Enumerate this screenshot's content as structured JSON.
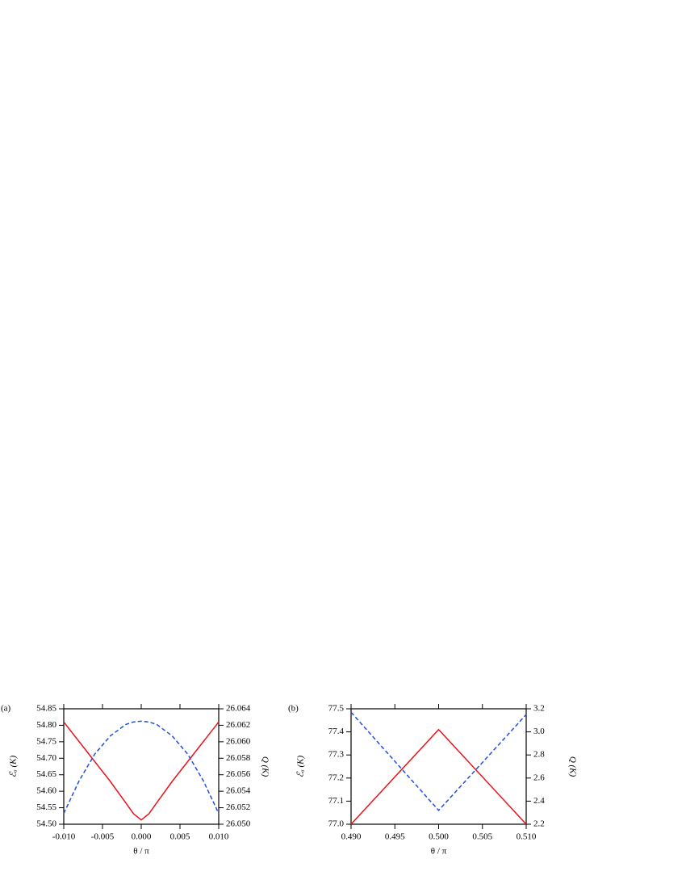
{
  "chart_data": [
    {
      "type": "line",
      "label": "(a)",
      "x_label": "θ / π",
      "y_label": "ℰₐ (K)",
      "y2_label": "Q (K)",
      "x": [
        -0.01,
        -0.008,
        -0.006,
        -0.004,
        -0.002,
        -0.001,
        0.0,
        0.001,
        0.002,
        0.004,
        0.006,
        0.008,
        0.01
      ],
      "xlim": [
        -0.01,
        0.01
      ],
      "xticks": [
        {
          "value": -0.01,
          "label": "-0.010"
        },
        {
          "value": -0.005,
          "label": "-0.005"
        },
        {
          "value": 0,
          "label": "0.000"
        },
        {
          "value": 0.005,
          "label": "0.005"
        },
        {
          "value": 0.01,
          "label": "0.010"
        }
      ],
      "ylim": [
        54.5,
        54.85
      ],
      "yticks": [
        {
          "value": 54.5,
          "label": "54.50"
        },
        {
          "value": 54.55,
          "label": "54.55"
        },
        {
          "value": 54.6,
          "label": "54.60"
        },
        {
          "value": 54.65,
          "label": "54.65"
        },
        {
          "value": 54.7,
          "label": "54.70"
        },
        {
          "value": 54.75,
          "label": "54.75"
        },
        {
          "value": 54.8,
          "label": "54.80"
        },
        {
          "value": 54.85,
          "label": "54.85"
        }
      ],
      "y2lim": [
        26.05,
        26.064
      ],
      "y2ticks": [
        {
          "value": 26.05,
          "label": "26.050"
        },
        {
          "value": 26.052,
          "label": "26.052"
        },
        {
          "value": 26.054,
          "label": "26.054"
        },
        {
          "value": 26.056,
          "label": "26.056"
        },
        {
          "value": 26.058,
          "label": "26.058"
        },
        {
          "value": 26.06,
          "label": "26.060"
        },
        {
          "value": 26.062,
          "label": "26.062"
        },
        {
          "value": 26.064,
          "label": "26.064"
        }
      ],
      "series": [
        {
          "color": "#e8141c",
          "dash": false,
          "values": [
            54.81,
            54.75,
            54.69,
            54.63,
            54.565,
            54.532,
            54.513,
            54.532,
            54.565,
            54.63,
            54.69,
            54.75,
            54.81
          ]
        },
        {
          "color": "#1f4fe0",
          "dash": true,
          "axis": "y2",
          "values": [
            26.0513,
            26.0553,
            26.0585,
            26.0607,
            26.0621,
            26.0624,
            26.0625,
            26.0624,
            26.0621,
            26.0607,
            26.0585,
            26.0553,
            26.0513
          ]
        }
      ]
    },
    {
      "type": "line",
      "label": "(b)",
      "x_label": "θ / π",
      "y_label": "ℰₐ (K)",
      "y2_label": "Q (K)",
      "x": [
        0.49,
        0.5,
        0.51
      ],
      "xlim": [
        0.49,
        0.51
      ],
      "xticks": [
        {
          "value": 0.49,
          "label": "0.490"
        },
        {
          "value": 0.495,
          "label": "0.495"
        },
        {
          "value": 0.5,
          "label": "0.500"
        },
        {
          "value": 0.505,
          "label": "0.505"
        },
        {
          "value": 0.51,
          "label": "0.510"
        }
      ],
      "ylim": [
        77.0,
        77.5
      ],
      "yticks": [
        {
          "value": 77,
          "label": "77.0"
        },
        77.1,
        77.2,
        77.3,
        77.4,
        77.5
      ],
      "y2lim": [
        2.2,
        3.2
      ],
      "y2ticks": [
        2.2,
        2.4,
        2.6,
        2.8,
        {
          "value": 3,
          "label": "3.0"
        },
        3.2
      ],
      "series": [
        {
          "color": "#e8141c",
          "dash": false,
          "values": [
            77.0,
            77.41,
            77.0
          ]
        },
        {
          "color": "#1f4fe0",
          "dash": true,
          "axis": "y2",
          "values": [
            3.17,
            2.32,
            3.15
          ]
        }
      ]
    }
  ]
}
